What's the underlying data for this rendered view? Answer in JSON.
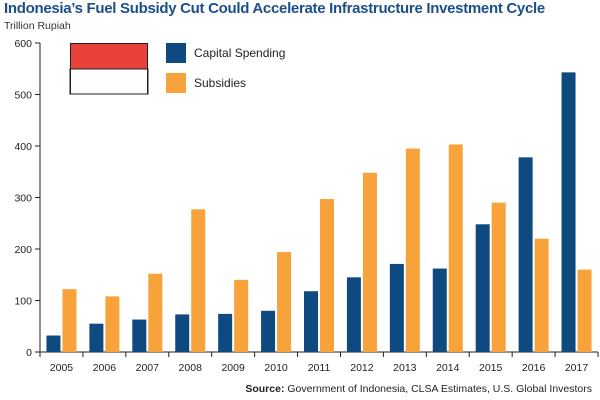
{
  "chart_data": {
    "type": "bar",
    "title": "Indonesia’s Fuel Subsidy Cut Could Accelerate Infrastructure Investment Cycle",
    "ylabel": "Trillion Rupiah",
    "categories": [
      "2005",
      "2006",
      "2007",
      "2008",
      "2009",
      "2010",
      "2011",
      "2012",
      "2013",
      "2014",
      "2015",
      "2016",
      "2017"
    ],
    "series": [
      {
        "name": "Capital Spending",
        "color": "#0e4a80",
        "values": [
          32,
          55,
          63,
          73,
          74,
          80,
          118,
          145,
          171,
          162,
          248,
          378,
          543
        ]
      },
      {
        "name": "Subsidies",
        "color": "#f7a23b",
        "values": [
          122,
          108,
          152,
          277,
          140,
          194,
          297,
          348,
          395,
          403,
          290,
          220,
          160
        ]
      }
    ],
    "ylim": [
      0,
      600
    ],
    "yticks": [
      "0",
      "100",
      "200",
      "300",
      "400",
      "500",
      "600"
    ],
    "legend_position": "top-left",
    "grid": false,
    "flag_colors": [
      "#e9413b",
      "#ffffff"
    ],
    "source_label": "Source:",
    "source_text": " Government of Indonesia, CLSA Estimates, U.S. Global Investors"
  }
}
